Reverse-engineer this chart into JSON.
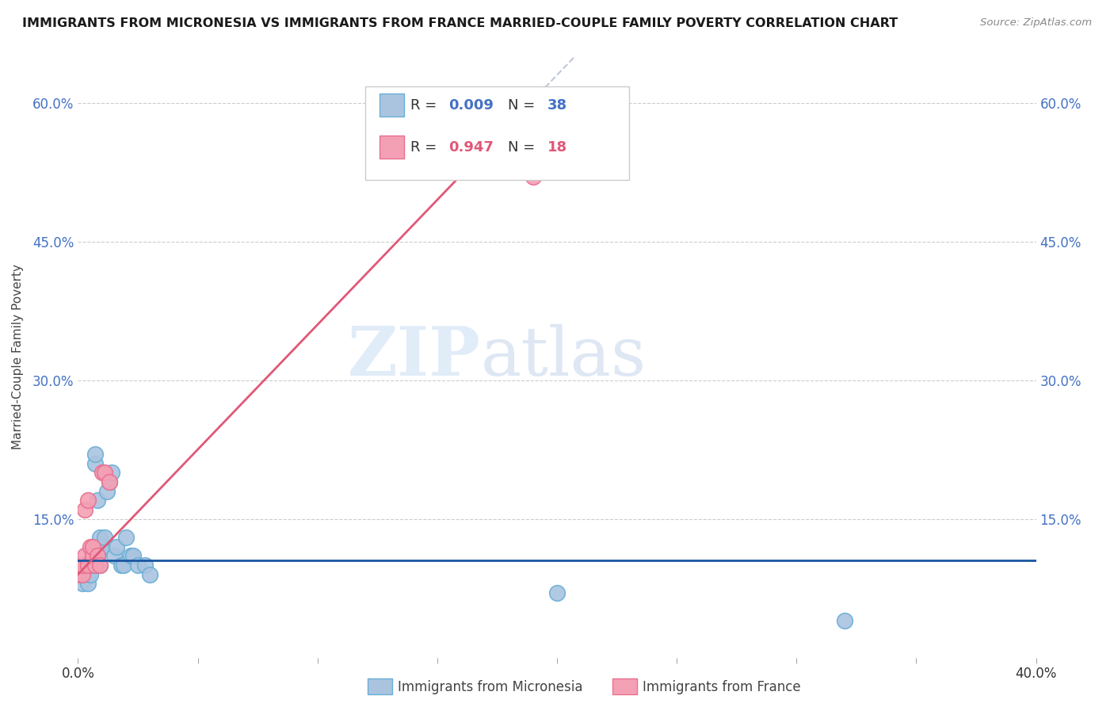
{
  "title": "IMMIGRANTS FROM MICRONESIA VS IMMIGRANTS FROM FRANCE MARRIED-COUPLE FAMILY POVERTY CORRELATION CHART",
  "source": "Source: ZipAtlas.com",
  "ylabel": "Married-Couple Family Poverty",
  "xlim": [
    0.0,
    0.4
  ],
  "ylim": [
    0.0,
    0.65
  ],
  "yticks": [
    0.0,
    0.15,
    0.3,
    0.45,
    0.6
  ],
  "ytick_labels": [
    "",
    "15.0%",
    "30.0%",
    "45.0%",
    "60.0%"
  ],
  "xticks": [
    0.0,
    0.05,
    0.1,
    0.15,
    0.2,
    0.25,
    0.3,
    0.35,
    0.4
  ],
  "xtick_labels": [
    "0.0%",
    "",
    "",
    "",
    "",
    "",
    "",
    "",
    "40.0%"
  ],
  "micronesia_color": "#aac4e0",
  "france_color": "#f4a0b4",
  "micronesia_edge_color": "#6aafd6",
  "france_edge_color": "#e87090",
  "trend_micronesia_color": "#1a55a0",
  "trend_france_color": "#e05878",
  "dashed_color": "#c0c8d4",
  "watermark_zip": "ZIP",
  "watermark_atlas": "atlas",
  "micronesia_x": [
    0.0,
    0.001,
    0.001,
    0.002,
    0.002,
    0.002,
    0.003,
    0.003,
    0.004,
    0.004,
    0.005,
    0.005,
    0.006,
    0.006,
    0.007,
    0.007,
    0.008,
    0.008,
    0.009,
    0.009,
    0.01,
    0.01,
    0.011,
    0.012,
    0.013,
    0.014,
    0.015,
    0.016,
    0.018,
    0.019,
    0.02,
    0.022,
    0.023,
    0.025,
    0.028,
    0.03,
    0.2,
    0.32
  ],
  "micronesia_y": [
    0.09,
    0.1,
    0.09,
    0.09,
    0.08,
    0.1,
    0.1,
    0.09,
    0.09,
    0.08,
    0.09,
    0.1,
    0.1,
    0.11,
    0.21,
    0.22,
    0.11,
    0.17,
    0.1,
    0.13,
    0.12,
    0.12,
    0.13,
    0.18,
    0.19,
    0.2,
    0.11,
    0.12,
    0.1,
    0.1,
    0.13,
    0.11,
    0.11,
    0.1,
    0.1,
    0.09,
    0.07,
    0.04
  ],
  "france_x": [
    0.0,
    0.001,
    0.002,
    0.002,
    0.003,
    0.003,
    0.004,
    0.004,
    0.005,
    0.006,
    0.006,
    0.007,
    0.008,
    0.009,
    0.01,
    0.011,
    0.013,
    0.19
  ],
  "france_y": [
    0.09,
    0.1,
    0.09,
    0.1,
    0.11,
    0.16,
    0.1,
    0.17,
    0.12,
    0.11,
    0.12,
    0.1,
    0.11,
    0.1,
    0.2,
    0.2,
    0.19,
    0.52
  ],
  "trend_micro_slope": 0.0,
  "trend_micro_intercept": 0.105,
  "trend_france_slope": 2.7,
  "trend_france_intercept": 0.09
}
